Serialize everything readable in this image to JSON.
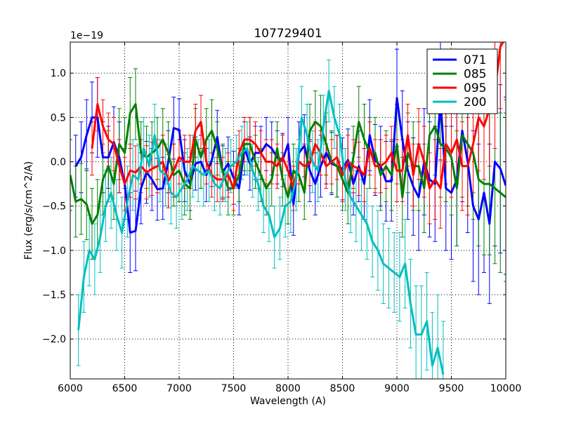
{
  "chart_data": {
    "type": "line",
    "title": "107729401",
    "xlabel": "Wavelength (A)",
    "ylabel": "Flux (erg/s/cm^2/A)",
    "y_offset_label": "1e−19",
    "xlim": [
      6000,
      10000
    ],
    "ylim": [
      -2.45,
      1.35
    ],
    "x_ticks": [
      6000,
      6500,
      7000,
      7500,
      8000,
      8500,
      9000,
      9500,
      10000
    ],
    "y_ticks": [
      -2.0,
      -1.5,
      -1.0,
      -0.5,
      0.0,
      0.5,
      1.0
    ],
    "y_tick_labels": [
      "−2.0",
      "−1.5",
      "−1.0",
      "−0.5",
      "0.0",
      "0.5",
      "1.0"
    ],
    "grid": true,
    "legend_position": "top-right",
    "series": [
      {
        "name": "071",
        "color": "#0000ff",
        "x": [
          6050,
          6100,
          6150,
          6200,
          6250,
          6300,
          6350,
          6400,
          6450,
          6500,
          6550,
          6600,
          6650,
          6700,
          6750,
          6800,
          6850,
          6900,
          6950,
          7000,
          7050,
          7100,
          7150,
          7200,
          7250,
          7300,
          7350,
          7400,
          7450,
          7500,
          7550,
          7600,
          7650,
          7700,
          7750,
          7800,
          7850,
          7900,
          7950,
          8000,
          8050,
          8100,
          8150,
          8200,
          8250,
          8300,
          8350,
          8400,
          8450,
          8500,
          8550,
          8600,
          8650,
          8700,
          8750,
          8800,
          8850,
          8900,
          8950,
          9000,
          9050,
          9100,
          9150,
          9200,
          9250,
          9300,
          9350,
          9400,
          9450,
          9500,
          9550,
          9600,
          9650,
          9700,
          9750,
          9800,
          9850,
          9900,
          9950,
          10000
        ],
        "y": [
          -0.05,
          0.05,
          0.3,
          0.5,
          0.5,
          0.05,
          0.05,
          0.22,
          0.05,
          -0.25,
          -0.8,
          -0.78,
          -0.3,
          -0.12,
          -0.2,
          -0.31,
          -0.3,
          0.0,
          0.38,
          0.36,
          -0.1,
          -0.25,
          -0.02,
          0.0,
          -0.15,
          0.02,
          0.28,
          -0.12,
          -0.02,
          -0.18,
          -0.3,
          0.15,
          -0.02,
          0.1,
          0.1,
          0.2,
          0.15,
          0.05,
          0.02,
          0.2,
          -0.48,
          0.1,
          0.18,
          -0.1,
          -0.25,
          -0.05,
          0.1,
          -0.02,
          -0.05,
          -0.08,
          0.02,
          -0.25,
          -0.05,
          -0.25,
          0.3,
          0.02,
          -0.05,
          -0.22,
          -0.22,
          0.72,
          0.25,
          -0.1,
          -0.28,
          -0.4,
          0.0,
          -0.2,
          -0.25,
          0.72,
          -0.3,
          -0.35,
          -0.2,
          0.35,
          0.0,
          -0.5,
          -0.65,
          -0.35,
          -0.7,
          0.0,
          -0.08,
          -0.27
        ],
        "err": [
          0.35,
          0.4,
          0.4,
          0.4,
          0.45,
          0.4,
          0.35,
          0.4,
          0.4,
          0.4,
          0.45,
          0.45,
          0.4,
          0.35,
          0.35,
          0.35,
          0.35,
          0.35,
          0.35,
          0.35,
          0.35,
          0.3,
          0.3,
          0.3,
          0.3,
          0.3,
          0.3,
          0.3,
          0.3,
          0.3,
          0.3,
          0.3,
          0.3,
          0.3,
          0.3,
          0.3,
          0.3,
          0.3,
          0.3,
          0.3,
          0.35,
          0.35,
          0.35,
          0.35,
          0.35,
          0.35,
          0.35,
          0.35,
          0.35,
          0.35,
          0.35,
          0.35,
          0.4,
          0.4,
          0.4,
          0.4,
          0.45,
          0.45,
          0.45,
          0.55,
          0.55,
          0.55,
          0.55,
          0.6,
          0.6,
          0.65,
          0.65,
          0.7,
          0.7,
          0.75,
          0.75,
          0.8,
          0.8,
          0.85,
          0.85,
          0.9,
          0.9,
          0.95,
          0.95,
          1.0
        ]
      },
      {
        "name": "085",
        "color": "#008000",
        "x": [
          6000,
          6050,
          6100,
          6150,
          6200,
          6250,
          6300,
          6350,
          6400,
          6450,
          6500,
          6550,
          6600,
          6650,
          6700,
          6750,
          6800,
          6850,
          6900,
          6950,
          7000,
          7050,
          7100,
          7150,
          7200,
          7250,
          7300,
          7350,
          7400,
          7450,
          7500,
          7550,
          7600,
          7650,
          7700,
          7750,
          7800,
          7850,
          7900,
          7950,
          8000,
          8050,
          8100,
          8150,
          8200,
          8250,
          8300,
          8350,
          8400,
          8450,
          8500,
          8550,
          8600,
          8650,
          8700,
          8750,
          8800,
          8850,
          8900,
          8950,
          9000,
          9050,
          9100,
          9150,
          9200,
          9250,
          9300,
          9350,
          9400,
          9450,
          9500,
          9550,
          9600,
          9650,
          9700,
          9750,
          9800,
          9850,
          9900,
          9950,
          10000
        ],
        "y": [
          -0.15,
          -0.45,
          -0.42,
          -0.48,
          -0.7,
          -0.6,
          -0.2,
          -0.05,
          -0.25,
          0.2,
          0.1,
          0.55,
          0.65,
          0.1,
          0.05,
          0.1,
          0.15,
          0.25,
          0.1,
          -0.15,
          -0.1,
          -0.25,
          -0.3,
          0.25,
          0.05,
          0.25,
          0.35,
          0.15,
          -0.1,
          -0.3,
          -0.3,
          -0.15,
          0.2,
          0.2,
          0.0,
          -0.15,
          -0.3,
          -0.2,
          0.15,
          -0.2,
          -0.4,
          -0.1,
          -0.15,
          -0.35,
          0.35,
          0.45,
          0.4,
          0.2,
          0.0,
          -0.05,
          -0.2,
          -0.35,
          0.05,
          0.45,
          0.25,
          0.1,
          0.1,
          -0.15,
          -0.05,
          -0.15,
          0.2,
          -0.4,
          0.1,
          -0.05,
          -0.05,
          -0.3,
          0.3,
          0.4,
          0.2,
          0.15,
          0.05,
          -0.3,
          0.3,
          0.2,
          0.1,
          -0.2,
          -0.25,
          -0.25,
          -0.3,
          -0.35,
          -0.4
        ],
        "err": [
          0.4,
          0.4,
          0.4,
          0.4,
          0.4,
          0.4,
          0.4,
          0.4,
          0.4,
          0.4,
          0.4,
          0.4,
          0.4,
          0.35,
          0.35,
          0.35,
          0.35,
          0.35,
          0.35,
          0.35,
          0.35,
          0.35,
          0.35,
          0.35,
          0.35,
          0.35,
          0.35,
          0.3,
          0.3,
          0.3,
          0.3,
          0.3,
          0.3,
          0.3,
          0.3,
          0.3,
          0.3,
          0.3,
          0.3,
          0.3,
          0.3,
          0.3,
          0.3,
          0.3,
          0.3,
          0.35,
          0.35,
          0.35,
          0.35,
          0.35,
          0.35,
          0.35,
          0.35,
          0.4,
          0.4,
          0.4,
          0.4,
          0.4,
          0.4,
          0.4,
          0.45,
          0.45,
          0.45,
          0.5,
          0.5,
          0.5,
          0.55,
          0.55,
          0.6,
          0.6,
          0.65,
          0.65,
          0.7,
          0.7,
          0.75,
          0.75,
          0.8,
          0.8,
          0.85,
          0.9,
          0.95
        ]
      },
      {
        "name": "095",
        "color": "#ff0000",
        "x": [
          6200,
          6250,
          6300,
          6350,
          6400,
          6450,
          6500,
          6550,
          6600,
          6650,
          6700,
          6750,
          6800,
          6850,
          6900,
          6950,
          7000,
          7050,
          7100,
          7150,
          7200,
          7250,
          7300,
          7350,
          7400,
          7450,
          7500,
          7550,
          7600,
          7650,
          7700,
          7750,
          7800,
          7850,
          7900,
          7950,
          8000,
          8050,
          8100,
          8150,
          8200,
          8250,
          8300,
          8350,
          8400,
          8450,
          8500,
          8550,
          8600,
          8650,
          8700,
          8750,
          8800,
          8850,
          8900,
          8950,
          9000,
          9050,
          9100,
          9150,
          9200,
          9250,
          9300,
          9350,
          9400,
          9450,
          9500,
          9550,
          9600,
          9650,
          9700,
          9750,
          9800,
          9850,
          9900,
          9950,
          10000
        ],
        "y": [
          0.15,
          0.65,
          0.4,
          0.25,
          0.2,
          -0.05,
          -0.25,
          -0.1,
          -0.12,
          -0.05,
          -0.12,
          -0.08,
          -0.05,
          0.0,
          -0.22,
          -0.1,
          0.05,
          0.0,
          0.0,
          0.35,
          0.45,
          0.0,
          -0.15,
          -0.2,
          -0.2,
          -0.15,
          -0.3,
          0.1,
          0.25,
          0.25,
          0.2,
          0.1,
          0.0,
          0.0,
          -0.05,
          0.05,
          -0.1,
          -0.3,
          0.0,
          -0.05,
          -0.02,
          0.2,
          0.1,
          -0.05,
          0.0,
          0.05,
          -0.15,
          0.0,
          -0.05,
          -0.08,
          -0.15,
          0.15,
          -0.05,
          -0.05,
          0.0,
          0.1,
          -0.1,
          -0.1,
          0.3,
          -0.15,
          0.2,
          0.0,
          -0.3,
          -0.2,
          -0.3,
          0.2,
          0.1,
          0.25,
          -0.05,
          -0.05,
          0.2,
          0.5,
          0.4,
          0.6,
          0.8,
          1.3,
          1.4
        ],
        "err": [
          0.3,
          0.3,
          0.3,
          0.3,
          0.3,
          0.3,
          0.3,
          0.3,
          0.3,
          0.3,
          0.3,
          0.3,
          0.3,
          0.3,
          0.3,
          0.3,
          0.3,
          0.3,
          0.3,
          0.3,
          0.3,
          0.25,
          0.25,
          0.25,
          0.25,
          0.25,
          0.25,
          0.25,
          0.25,
          0.25,
          0.25,
          0.25,
          0.25,
          0.25,
          0.25,
          0.25,
          0.25,
          0.25,
          0.25,
          0.25,
          0.25,
          0.25,
          0.25,
          0.25,
          0.25,
          0.25,
          0.3,
          0.3,
          0.3,
          0.3,
          0.3,
          0.3,
          0.3,
          0.3,
          0.3,
          0.3,
          0.35,
          0.35,
          0.35,
          0.35,
          0.4,
          0.4,
          0.4,
          0.45,
          0.45,
          0.45,
          0.5,
          0.5,
          0.5,
          0.55,
          0.55,
          0.6,
          0.6,
          0.65,
          0.65,
          0.7,
          0.7
        ]
      },
      {
        "name": "200",
        "color": "#00bfbf",
        "x": [
          6075,
          6125,
          6175,
          6225,
          6275,
          6325,
          6375,
          6425,
          6475,
          6525,
          6575,
          6625,
          6675,
          6725,
          6775,
          6825,
          6875,
          6925,
          6975,
          7025,
          7075,
          7125,
          7175,
          7225,
          7275,
          7325,
          7375,
          7425,
          7475,
          7525,
          7575,
          7625,
          7675,
          7725,
          7775,
          7825,
          7875,
          7925,
          7975,
          8025,
          8075,
          8125,
          8175,
          8225,
          8275,
          8325,
          8375,
          8425,
          8475,
          8525,
          8575,
          8625,
          8675,
          8725,
          8775,
          8825,
          8875,
          8925,
          8975,
          9025,
          9075,
          9125,
          9175,
          9225,
          9275,
          9325,
          9375,
          9425
        ],
        "y": [
          -1.9,
          -1.3,
          -1.0,
          -1.1,
          -0.85,
          -0.5,
          -0.35,
          -0.6,
          -0.8,
          -0.45,
          -0.15,
          -0.2,
          0.15,
          -0.05,
          0.3,
          -0.1,
          -0.15,
          -0.35,
          -0.4,
          -0.3,
          -0.2,
          -0.05,
          -0.1,
          -0.15,
          -0.1,
          -0.25,
          -0.3,
          -0.15,
          -0.05,
          0.0,
          0.1,
          0.15,
          -0.1,
          -0.25,
          -0.5,
          -0.6,
          -0.85,
          -0.75,
          -0.5,
          -0.45,
          -0.2,
          0.5,
          0.3,
          0.0,
          -0.1,
          0.4,
          0.8,
          0.5,
          0.3,
          -0.2,
          -0.4,
          -0.5,
          -0.6,
          -0.7,
          -0.9,
          -1.0,
          -1.15,
          -1.2,
          -1.25,
          -1.3,
          -1.15,
          -1.6,
          -1.95,
          -1.95,
          -1.8,
          -2.3,
          -2.1,
          -2.4
        ],
        "err": [
          0.4,
          0.4,
          0.4,
          0.4,
          0.4,
          0.4,
          0.4,
          0.4,
          0.4,
          0.4,
          0.4,
          0.4,
          0.35,
          0.35,
          0.35,
          0.35,
          0.35,
          0.35,
          0.35,
          0.35,
          0.35,
          0.35,
          0.35,
          0.35,
          0.35,
          0.3,
          0.3,
          0.3,
          0.3,
          0.3,
          0.3,
          0.3,
          0.3,
          0.3,
          0.3,
          0.3,
          0.35,
          0.35,
          0.35,
          0.35,
          0.35,
          0.35,
          0.35,
          0.35,
          0.35,
          0.35,
          0.35,
          0.35,
          0.35,
          0.35,
          0.4,
          0.4,
          0.4,
          0.4,
          0.4,
          0.45,
          0.45,
          0.45,
          0.45,
          0.5,
          0.5,
          0.5,
          0.55,
          0.55,
          0.55,
          0.6,
          0.6,
          0.6
        ]
      }
    ]
  }
}
